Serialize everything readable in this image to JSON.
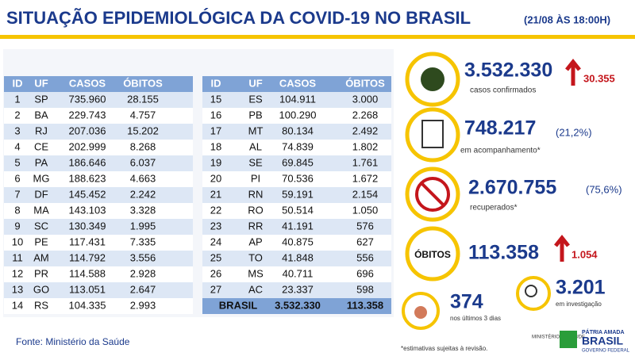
{
  "header": {
    "title": "SITUAÇÃO EPIDEMIOLÓGICA DA COVID-19 NO BRASIL",
    "date": "(21/08 ÀS 18:00H)"
  },
  "table": {
    "columns": [
      "ID",
      "UF",
      "CASOS",
      "ÓBITOS"
    ],
    "left_rows": [
      [
        "1",
        "SP",
        "735.960",
        "28.155"
      ],
      [
        "2",
        "BA",
        "229.743",
        "4.757"
      ],
      [
        "3",
        "RJ",
        "207.036",
        "15.202"
      ],
      [
        "4",
        "CE",
        "202.999",
        "8.268"
      ],
      [
        "5",
        "PA",
        "186.646",
        "6.037"
      ],
      [
        "6",
        "MG",
        "188.623",
        "4.663"
      ],
      [
        "7",
        "DF",
        "145.452",
        "2.242"
      ],
      [
        "8",
        "MA",
        "143.103",
        "3.328"
      ],
      [
        "9",
        "SC",
        "130.349",
        "1.995"
      ],
      [
        "10",
        "PE",
        "117.431",
        "7.335"
      ],
      [
        "11",
        "AM",
        "114.792",
        "3.556"
      ],
      [
        "12",
        "PR",
        "114.588",
        "2.928"
      ],
      [
        "13",
        "GO",
        "113.051",
        "2.647"
      ],
      [
        "14",
        "RS",
        "104.335",
        "2.993"
      ]
    ],
    "right_rows": [
      [
        "15",
        "ES",
        "104.911",
        "3.000"
      ],
      [
        "16",
        "PB",
        "100.290",
        "2.268"
      ],
      [
        "17",
        "MT",
        "80.134",
        "2.492"
      ],
      [
        "18",
        "AL",
        "74.839",
        "1.802"
      ],
      [
        "19",
        "SE",
        "69.845",
        "1.761"
      ],
      [
        "20",
        "PI",
        "70.536",
        "1.672"
      ],
      [
        "21",
        "RN",
        "59.191",
        "2.154"
      ],
      [
        "22",
        "RO",
        "50.514",
        "1.050"
      ],
      [
        "23",
        "RR",
        "41.191",
        "576"
      ],
      [
        "24",
        "AP",
        "40.875",
        "627"
      ],
      [
        "25",
        "TO",
        "41.848",
        "556"
      ],
      [
        "26",
        "MS",
        "40.711",
        "696"
      ],
      [
        "27",
        "AC",
        "23.337",
        "598"
      ]
    ],
    "total": [
      "BRASIL",
      "3.532.330",
      "113.358"
    ]
  },
  "cards": {
    "confirmed": {
      "value": "3.532.330",
      "increase": "30.355",
      "label": "casos confirmados"
    },
    "monitoring": {
      "value": "748.217",
      "percent": "(21,2%)",
      "label": "em acompanhamento*"
    },
    "recovered": {
      "value": "2.670.755",
      "percent": "(75,6%)",
      "label": "recuperados*"
    },
    "deaths": {
      "title": "ÓBITOS",
      "value": "113.358",
      "increase": "1.054"
    },
    "investigation": {
      "value": "3.201",
      "label": "em investigação"
    },
    "recent": {
      "value": "374",
      "label": "nos últimos 3 dias"
    }
  },
  "footer": {
    "source": "Fonte: Ministério da Saúde",
    "note": "*estimativas sujeitas à revisão.",
    "ministry": "MINISTÉRIO DA SAÚDE",
    "slogan": "PÁTRIA AMADA",
    "country": "BRASIL",
    "government": "GOVERNO FEDERAL"
  }
}
